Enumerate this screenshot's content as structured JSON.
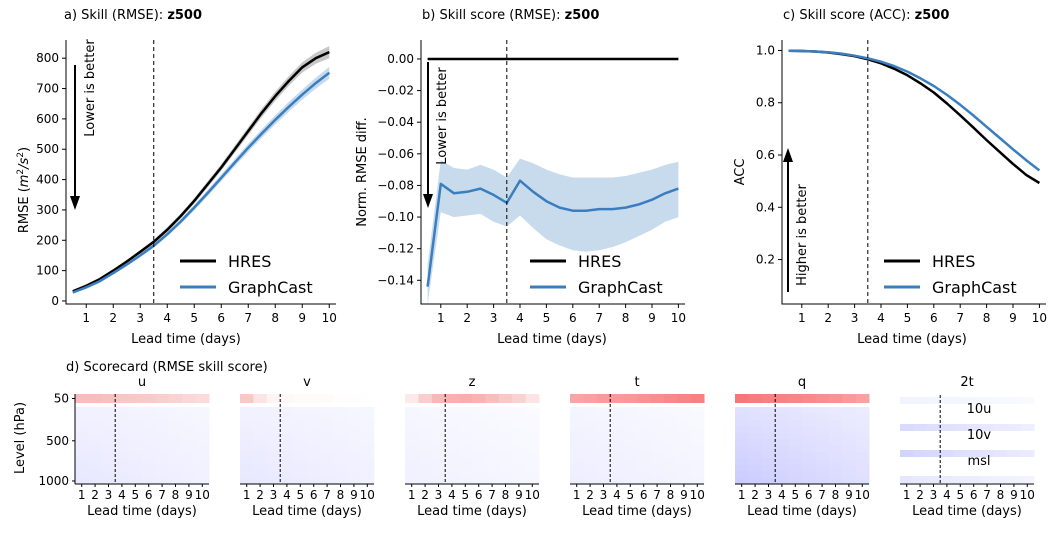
{
  "chart_data": [
    {
      "type": "line",
      "panel": "a",
      "title_prefix": "a) Skill (RMSE):",
      "title_var": "z500",
      "xlabel": "Lead time (days)",
      "ylabel_base": "RMSE (",
      "ylabel_unit": "m",
      "ylabel_exp1": "2",
      "ylabel_slash": "/s",
      "ylabel_exp2": "2",
      "ylabel_close": ")",
      "xlim": [
        0.25,
        10.25
      ],
      "ylim": [
        -10,
        860
      ],
      "xticks": [
        1,
        2,
        3,
        4,
        5,
        6,
        7,
        8,
        9,
        10
      ],
      "yticks": [
        0,
        100,
        200,
        300,
        400,
        500,
        600,
        700,
        800
      ],
      "vline_x": 3.5,
      "annotation": "Lower is better",
      "arrow": "down",
      "legend_position": "lower-right",
      "series": [
        {
          "name": "HRES",
          "color": "#000000",
          "x": [
            0.5,
            1,
            1.5,
            2,
            2.5,
            3,
            3.5,
            4,
            4.5,
            5,
            5.5,
            6,
            6.5,
            7,
            7.5,
            8,
            8.5,
            9,
            9.5,
            10
          ],
          "y": [
            32,
            50,
            72,
            100,
            130,
            162,
            195,
            235,
            280,
            330,
            385,
            440,
            500,
            560,
            620,
            675,
            725,
            770,
            800,
            820
          ],
          "lower": [
            28,
            46,
            68,
            95,
            125,
            156,
            188,
            227,
            272,
            321,
            375,
            429,
            488,
            547,
            606,
            660,
            709,
            753,
            782,
            800
          ],
          "upper": [
            36,
            54,
            76,
            105,
            135,
            168,
            202,
            243,
            288,
            339,
            395,
            451,
            512,
            573,
            634,
            690,
            741,
            787,
            818,
            840
          ]
        },
        {
          "name": "GraphCast",
          "color": "#3a7ebf",
          "x": [
            0.5,
            1,
            1.5,
            2,
            2.5,
            3,
            3.5,
            4,
            4.5,
            5,
            5.5,
            6,
            6.5,
            7,
            7.5,
            8,
            8.5,
            9,
            9.5,
            10
          ],
          "y": [
            28,
            45,
            65,
            92,
            120,
            150,
            182,
            220,
            262,
            308,
            356,
            406,
            456,
            505,
            552,
            597,
            640,
            680,
            718,
            752
          ],
          "lower": [
            25,
            42,
            62,
            88,
            116,
            145,
            176,
            213,
            254,
            299,
            346,
            395,
            444,
            492,
            538,
            582,
            624,
            663,
            700,
            732
          ],
          "upper": [
            31,
            48,
            68,
            96,
            124,
            155,
            188,
            227,
            270,
            317,
            366,
            417,
            468,
            518,
            566,
            612,
            656,
            697,
            736,
            772
          ]
        }
      ]
    },
    {
      "type": "line",
      "panel": "b",
      "title_prefix": "b) Skill score (RMSE):",
      "title_var": "z500",
      "xlabel": "Lead time (days)",
      "ylabel": "Norm. RMSE diff.",
      "xlim": [
        0.25,
        10.25
      ],
      "ylim": [
        -0.155,
        0.012
      ],
      "xticks": [
        1,
        2,
        3,
        4,
        5,
        6,
        7,
        8,
        9,
        10
      ],
      "yticks": [
        0.0,
        -0.02,
        -0.04,
        -0.06,
        -0.08,
        -0.1,
        -0.12,
        -0.14
      ],
      "ytick_labels": [
        "0.00",
        "−0.02",
        "−0.04",
        "−0.06",
        "−0.08",
        "−0.10",
        "−0.12",
        "−0.14"
      ],
      "vline_x": 3.5,
      "annotation": "Lower is better",
      "arrow": "down",
      "legend_position": "lower-right",
      "series": [
        {
          "name": "HRES",
          "color": "#000000",
          "x": [
            0.5,
            10
          ],
          "y": [
            0,
            0
          ]
        },
        {
          "name": "GraphCast",
          "color": "#3a7ebf",
          "x": [
            0.5,
            1,
            1.5,
            2,
            2.5,
            3,
            3.5,
            4,
            4.5,
            5,
            5.5,
            6,
            6.5,
            7,
            7.5,
            8,
            8.5,
            9,
            9.5,
            10
          ],
          "y": [
            -0.144,
            -0.079,
            -0.085,
            -0.084,
            -0.082,
            -0.086,
            -0.091,
            -0.077,
            -0.084,
            -0.09,
            -0.094,
            -0.096,
            -0.096,
            -0.095,
            -0.095,
            -0.094,
            -0.092,
            -0.089,
            -0.085,
            -0.082
          ],
          "lower": [
            -0.155,
            -0.097,
            -0.1,
            -0.099,
            -0.098,
            -0.103,
            -0.106,
            -0.099,
            -0.107,
            -0.114,
            -0.118,
            -0.121,
            -0.122,
            -0.121,
            -0.119,
            -0.116,
            -0.112,
            -0.108,
            -0.103,
            -0.1
          ],
          "upper": [
            -0.13,
            -0.064,
            -0.069,
            -0.07,
            -0.067,
            -0.07,
            -0.075,
            -0.063,
            -0.066,
            -0.07,
            -0.073,
            -0.075,
            -0.075,
            -0.075,
            -0.075,
            -0.074,
            -0.072,
            -0.07,
            -0.067,
            -0.065
          ]
        }
      ]
    },
    {
      "type": "line",
      "panel": "c",
      "title_prefix": "c) Skill score (ACC):",
      "title_var": "z500",
      "xlabel": "Lead time (days)",
      "ylabel": "ACC",
      "xlim": [
        0.25,
        10.25
      ],
      "ylim": [
        0.03,
        1.04
      ],
      "xticks": [
        1,
        2,
        3,
        4,
        5,
        6,
        7,
        8,
        9,
        10
      ],
      "yticks": [
        0.2,
        0.4,
        0.6,
        0.8,
        1.0
      ],
      "ytick_labels": [
        "0.2",
        "0.4",
        "0.6",
        "0.8",
        "1.0"
      ],
      "vline_x": 3.5,
      "annotation": "Higher is better",
      "arrow": "up",
      "legend_position": "lower-right",
      "series": [
        {
          "name": "HRES",
          "color": "#000000",
          "x": [
            0.5,
            1,
            1.5,
            2,
            2.5,
            3,
            3.5,
            4,
            4.5,
            5,
            5.5,
            6,
            6.5,
            7,
            7.5,
            8,
            8.5,
            9,
            9.5,
            10
          ],
          "y": [
            0.999,
            0.998,
            0.996,
            0.992,
            0.986,
            0.978,
            0.966,
            0.951,
            0.93,
            0.905,
            0.874,
            0.839,
            0.797,
            0.752,
            0.705,
            0.657,
            0.611,
            0.566,
            0.524,
            0.493
          ]
        },
        {
          "name": "GraphCast",
          "color": "#3a7ebf",
          "x": [
            0.5,
            1,
            1.5,
            2,
            2.5,
            3,
            3.5,
            4,
            4.5,
            5,
            5.5,
            6,
            6.5,
            7,
            7.5,
            8,
            8.5,
            9,
            9.5,
            10
          ],
          "y": [
            0.999,
            0.998,
            0.996,
            0.993,
            0.988,
            0.98,
            0.97,
            0.957,
            0.94,
            0.919,
            0.893,
            0.864,
            0.83,
            0.792,
            0.751,
            0.708,
            0.665,
            0.622,
            0.58,
            0.541
          ]
        }
      ]
    },
    {
      "type": "heatmap",
      "panel": "d",
      "title": "d) Scorecard (RMSE skill score)",
      "xlabel": "Lead time (days)",
      "ylabel": "Level (hPa)",
      "yticks": [
        50,
        500,
        1000
      ],
      "xticks": [
        1,
        2,
        3,
        4,
        5,
        6,
        7,
        8,
        9,
        10
      ],
      "vline_x": 3.5,
      "color_scale": "negative = blue (GraphCast better), positive = red (HRES better)",
      "atmospheric_panels": [
        {
          "var": "u",
          "top_level_skill": [
            0.3,
            0.3,
            0.28,
            0.26,
            0.25,
            0.24,
            0.22,
            0.2,
            0.18,
            0.16
          ],
          "lower_skill": -0.08
        },
        {
          "var": "v",
          "top_level_skill": [
            0.25,
            0.12,
            0.05,
            0.03,
            0.02,
            0.02,
            0.02,
            0.01,
            0.01,
            0.0
          ],
          "lower_skill": -0.08
        },
        {
          "var": "z",
          "top_level_skill": [
            0.1,
            0.22,
            0.32,
            0.35,
            0.36,
            0.34,
            0.3,
            0.25,
            0.2,
            0.12
          ],
          "lower_skill": -0.05
        },
        {
          "var": "t",
          "top_level_skill": [
            0.4,
            0.42,
            0.44,
            0.45,
            0.46,
            0.48,
            0.5,
            0.52,
            0.54,
            0.56
          ],
          "lower_skill": -0.06
        },
        {
          "var": "q",
          "top_level_skill": [
            0.6,
            0.58,
            0.56,
            0.55,
            0.54,
            0.52,
            0.5,
            0.48,
            0.45,
            0.42
          ],
          "lower_skill": -0.18
        }
      ],
      "surface_panel": {
        "vars": [
          "2t",
          "10u",
          "10v",
          "msl"
        ],
        "skill": [
          -0.04,
          -0.12,
          -0.14,
          -0.08
        ]
      }
    }
  ]
}
